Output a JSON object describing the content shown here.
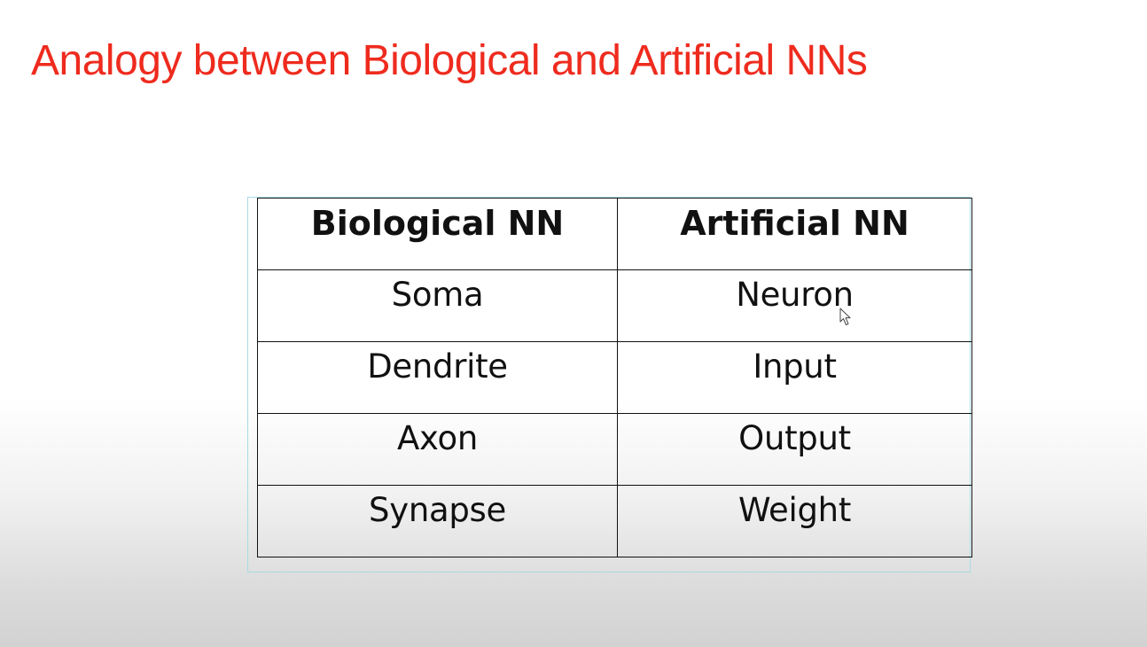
{
  "slide": {
    "title": "Analogy between Biological and Artificial NNs"
  },
  "table": {
    "headers": [
      "Biological NN",
      "Artificial NN"
    ],
    "rows": [
      [
        "Soma",
        "Neuron"
      ],
      [
        "Dendrite",
        "Input"
      ],
      [
        "Axon",
        "Output"
      ],
      [
        "Synapse",
        "Weight"
      ]
    ]
  },
  "colors": {
    "title": "#ee2b1e",
    "frame": "#a8dbe2",
    "grid": "#111111"
  },
  "icons": {
    "cursor": "mouse-pointer-icon"
  }
}
